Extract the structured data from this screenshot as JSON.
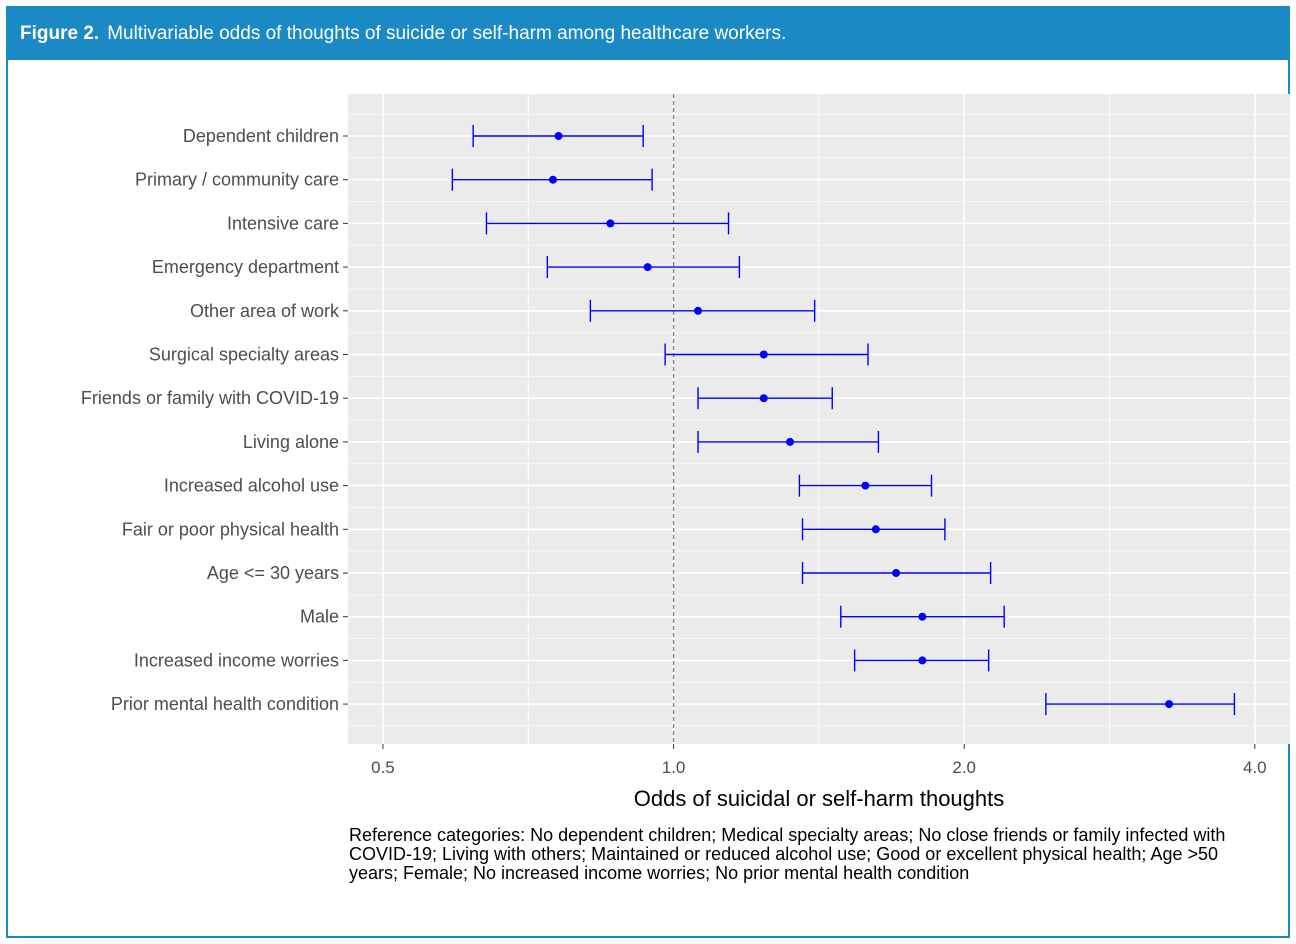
{
  "header": {
    "figure_label": "Figure 2.",
    "caption": "Multivariable odds of thoughts of suicide or self-harm among healthcare workers."
  },
  "colors": {
    "header_bg": "#1b8ac4",
    "panel_bg": "#ebebeb",
    "series": "#0000ff",
    "reference_line": "#808080"
  },
  "chart_data": {
    "type": "forest",
    "title": "",
    "xlabel": "Odds of suicidal or self-harm thoughts",
    "ylabel": "",
    "x_scale": "log",
    "xlim": [
      0.46,
      4.35
    ],
    "x_ticks": [
      0.5,
      1.0,
      2.0,
      4.0
    ],
    "x_tick_labels": [
      "0.5",
      "1.0",
      "2.0",
      "4.0"
    ],
    "reference_line": 1.0,
    "grid": true,
    "categories": [
      "Dependent children",
      "Primary / community care",
      "Intensive care",
      "Emergency department",
      "Other area of work",
      "Surgical specialty areas",
      "Friends or family with COVID-19",
      "Living alone",
      "Increased alcohol use",
      "Fair or poor physical health",
      "Age <= 30 years",
      "Male",
      "Increased income worries",
      "Prior mental health condition"
    ],
    "estimate": [
      0.76,
      0.75,
      0.86,
      0.94,
      1.06,
      1.24,
      1.24,
      1.32,
      1.58,
      1.62,
      1.7,
      1.81,
      1.81,
      3.26
    ],
    "lower": [
      0.62,
      0.59,
      0.64,
      0.74,
      0.82,
      0.98,
      1.06,
      1.06,
      1.35,
      1.36,
      1.36,
      1.49,
      1.54,
      2.43
    ],
    "upper": [
      0.93,
      0.95,
      1.14,
      1.17,
      1.4,
      1.59,
      1.46,
      1.63,
      1.85,
      1.91,
      2.13,
      2.2,
      2.12,
      3.81
    ]
  },
  "footnote": "Reference categories: No dependent children; Medical specialty areas; No close friends or family infected with COVID-19; Living with others; Maintained or reduced alcohol use; Good or excellent physical health; Age >50 years; Female; No increased income worries; No prior mental health condition"
}
